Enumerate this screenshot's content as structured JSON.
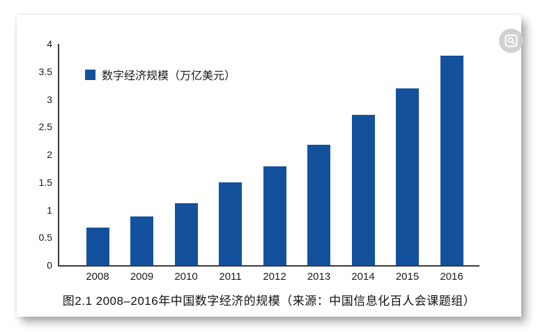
{
  "caption": "图2.1 2008–2016年中国数字经济的规模（来源：中国信息化百人会课题组）",
  "colors": {
    "bar": "#14519C",
    "axis": "#3A3A3A",
    "text": "#1A1A1A",
    "watermark_circle": "#CDCDCD",
    "watermark_glyph": "#FFFFFF"
  },
  "watermark": {
    "icon": "magnifier-preview-icon"
  },
  "chart_data": {
    "type": "bar",
    "title": "",
    "legend": "数字经济规模（万亿美元）",
    "categories": [
      "2008",
      "2009",
      "2010",
      "2011",
      "2012",
      "2013",
      "2014",
      "2015",
      "2016"
    ],
    "values": [
      0.68,
      0.88,
      1.12,
      1.5,
      1.78,
      2.18,
      2.72,
      3.19,
      3.79
    ],
    "xlabel": "",
    "ylabel": "",
    "ylim": [
      0,
      4
    ],
    "yticks": [
      0,
      0.5,
      1,
      1.5,
      2,
      2.5,
      3,
      3.5,
      4
    ],
    "ytick_labels": [
      "0",
      "0.5",
      "1",
      "1.5",
      "2",
      "2.5",
      "3",
      "3.5",
      "4"
    ],
    "grid": false,
    "legend_position": "inside-top-left"
  }
}
